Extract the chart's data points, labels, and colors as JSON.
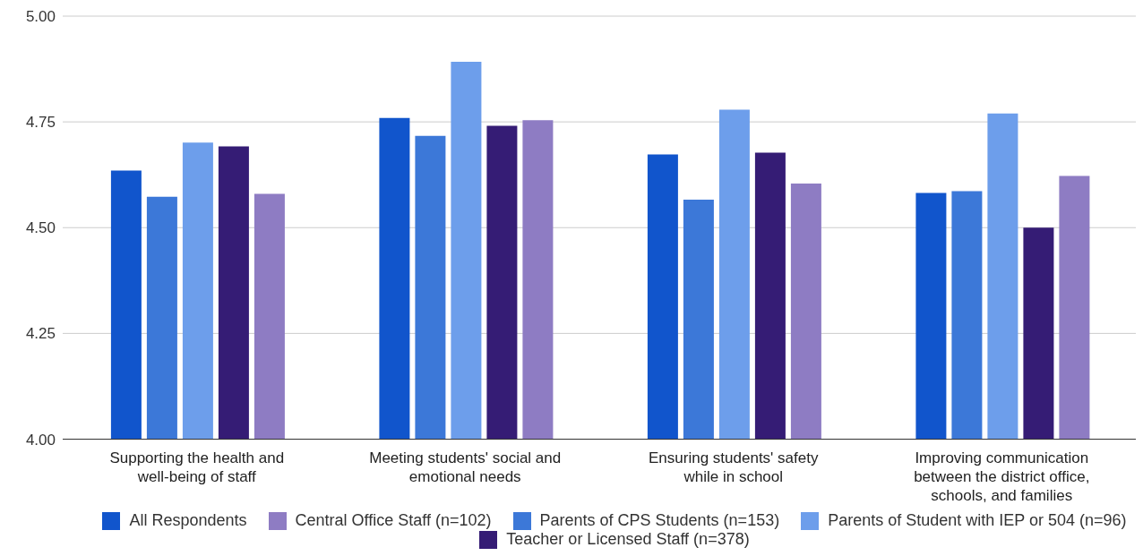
{
  "chart_data": {
    "type": "bar",
    "categories": [
      "Supporting the health and well-being of staff",
      "Meeting students' social and emotional needs",
      "Ensuring students' safety while in school",
      "Improving communication between the district office, schools, and families"
    ],
    "series": [
      {
        "name": "All Respondents",
        "color": "#1155cc",
        "values": [
          4.635,
          4.759,
          4.673,
          4.582
        ]
      },
      {
        "name": "Parents of CPS Students (n=153)",
        "color": "#3c78d8",
        "values": [
          4.573,
          4.717,
          4.566,
          4.586
        ]
      },
      {
        "name": "Parents of Student with IEP or 504 (n=96)",
        "color": "#6d9eeb",
        "values": [
          4.701,
          4.892,
          4.779,
          4.77
        ]
      },
      {
        "name": "Teacher or Licensed Staff (n=378)",
        "color": "#351c75",
        "values": [
          4.692,
          4.741,
          4.677,
          4.5
        ]
      },
      {
        "name": "Central Office Staff (n=102)",
        "color": "#8e7cc3",
        "values": [
          4.58,
          4.754,
          4.604,
          4.622
        ]
      }
    ],
    "ylim": [
      4,
      5
    ],
    "yticks": [
      {
        "value": 4,
        "label": "4.00"
      },
      {
        "value": 4.25,
        "label": "4.25"
      },
      {
        "value": 4.5,
        "label": "4.50"
      },
      {
        "value": 4.75,
        "label": "4.75"
      },
      {
        "value": 5,
        "label": "5.00"
      }
    ],
    "grid": "y",
    "legend": "bottom"
  }
}
